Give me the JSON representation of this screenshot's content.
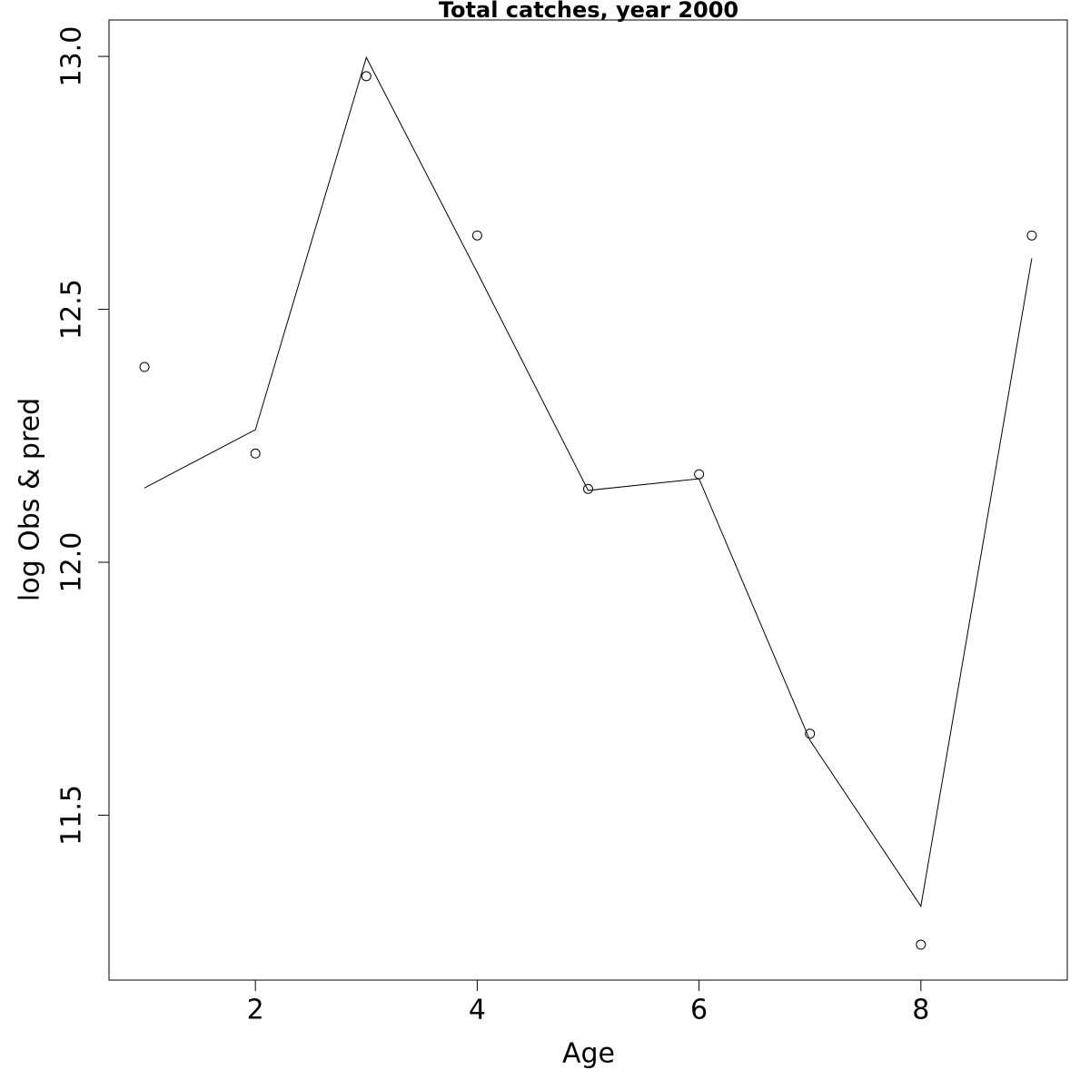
{
  "chart_data": {
    "type": "line",
    "title": "Total catches, year 2000",
    "x_label": "Age",
    "y_label": "log Obs & pred",
    "x": [
      1,
      2,
      3,
      4,
      5,
      6,
      7,
      8,
      9
    ],
    "series": [
      {
        "mode": "markers",
        "color": "#000000",
        "values": [
          12.386,
          12.215,
          12.961,
          12.646,
          12.145,
          12.174,
          11.661,
          11.244,
          12.646
        ]
      },
      {
        "mode": "line",
        "color": "#000000",
        "values": [
          12.147,
          12.262,
          12.998,
          12.573,
          12.142,
          12.165,
          11.648,
          11.32,
          12.601
        ]
      }
    ],
    "xlim": [
      0.68,
      9.32
    ],
    "xticks": [
      2,
      4,
      6,
      8
    ],
    "ylim": [
      11.174,
      13.072
    ],
    "yticks": [
      11.5,
      {
        "value": 12,
        "label": "12.0"
      },
      12.5,
      {
        "value": 13,
        "label": "13.0"
      }
    ]
  }
}
